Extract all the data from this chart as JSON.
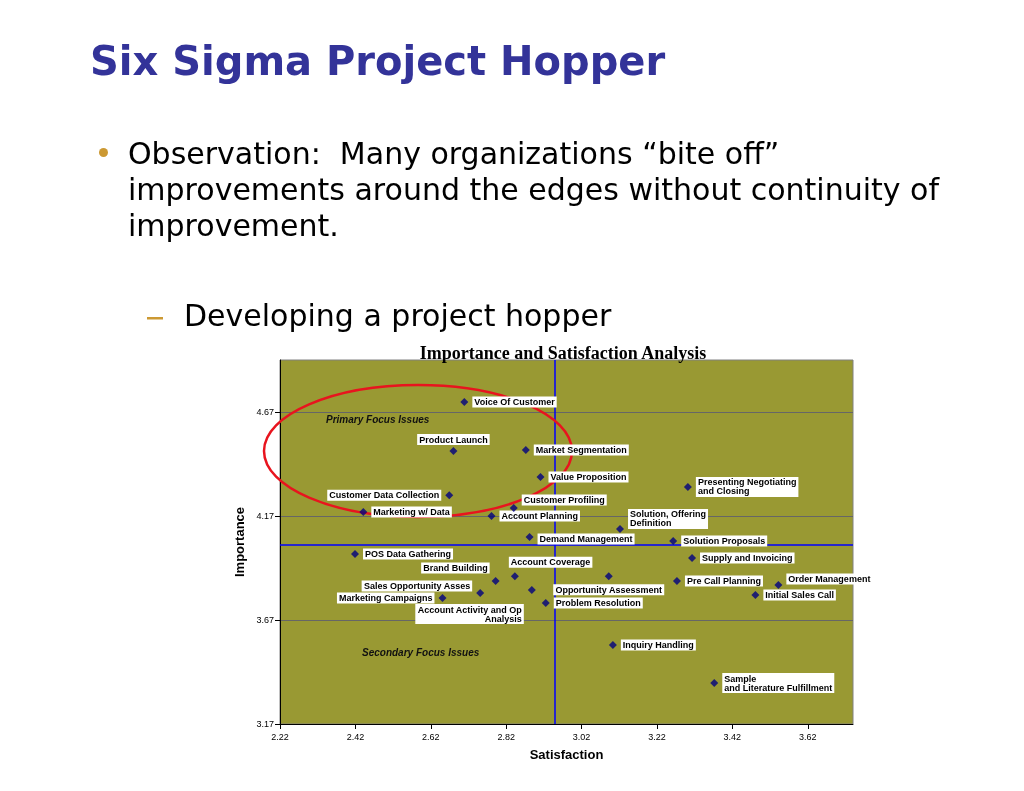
{
  "chart_data": {
    "type": "scatter",
    "title": "Six Sigma Project Hopper",
    "subtitle": "Importance and Satisfaction Analysis",
    "xlabel": "Satisfaction",
    "ylabel": "Importance",
    "x": [
      2.709,
      2.68,
      2.872,
      2.911,
      2.669,
      2.84,
      2.441,
      2.781,
      2.882,
      3.122,
      3.263,
      3.302,
      2.419,
      2.792,
      2.751,
      2.651,
      2.843,
      2.888,
      2.925,
      3.092,
      3.273,
      3.313,
      3.542,
      3.481,
      3.103,
      3.372
    ],
    "series": [
      {
        "color": "#000080",
        "values": [
          4.718,
          4.482,
          4.487,
          4.357,
          4.27,
          4.208,
          4.189,
          4.17,
          4.069,
          4.108,
          4.05,
          4.31,
          3.987,
          3.857,
          3.8,
          3.776,
          3.88,
          3.814,
          3.752,
          3.88,
          3.857,
          3.968,
          3.838,
          3.79,
          3.55,
          3.367
        ]
      }
    ],
    "marker": "diamond",
    "grid": "y",
    "xlim": [
      2.22,
      3.74
    ],
    "xticks": [
      2.22,
      2.42,
      2.62,
      2.82,
      3.02,
      3.22,
      3.42,
      3.62
    ],
    "ylim": [
      3.17,
      4.92
    ],
    "yticks": [
      3.17,
      3.67,
      4.17,
      4.67
    ],
    "ref_lines": [
      {
        "axis": "x",
        "value": 2.951,
        "color": "#0000ff"
      },
      {
        "axis": "y",
        "value": 4.026,
        "color": "#0000ff"
      }
    ],
    "annotations": [
      "Observation:  Many organizations “bite off” improvements around the edges without continuity of improvement.",
      "Developing a project hopper",
      "Primary Focus Issues",
      "Secondary Focus Issues",
      {
        "text": "Voice Of Customer",
        "x": 2.709,
        "y": 4.718
      },
      {
        "text": "Product Launch",
        "x": 2.68,
        "y": 4.482
      },
      {
        "text": "Market Segmentation",
        "x": 2.872,
        "y": 4.487
      },
      {
        "text": "Value Proposition",
        "x": 2.911,
        "y": 4.357
      },
      {
        "text": "Customer Data Collection",
        "x": 2.669,
        "y": 4.27
      },
      {
        "text": "Customer Profiling",
        "x": 2.84,
        "y": 4.208
      },
      {
        "text": "Marketing w/ Data",
        "x": 2.441,
        "y": 4.189
      },
      {
        "text": "Account Planning",
        "x": 2.781,
        "y": 4.17
      },
      {
        "text": "Demand Management",
        "x": 2.882,
        "y": 4.069
      },
      {
        "text": "Solution, Offering\nDefinition",
        "x": 3.122,
        "y": 4.108
      },
      {
        "text": "Solution Proposals",
        "x": 3.263,
        "y": 4.05
      },
      {
        "text": "Presenting Negotiating\nand Closing",
        "x": 3.302,
        "y": 4.31
      },
      {
        "text": "POS Data Gathering",
        "x": 2.419,
        "y": 3.987
      },
      {
        "text": "Brand Building",
        "x": 2.792,
        "y": 3.857
      },
      {
        "text": "Sales Opportunity Asses",
        "x": 2.751,
        "y": 3.8
      },
      {
        "text": "Marketing Campaigns",
        "x": 2.651,
        "y": 3.776
      },
      {
        "text": "Account Coverage",
        "x": 2.843,
        "y": 3.88
      },
      {
        "text": "Account Activity and Op\nAnalysis",
        "x": 2.888,
        "y": 3.814
      },
      {
        "text": "Problem Resolution",
        "x": 2.925,
        "y": 3.752
      },
      {
        "text": "Opportunity Assessment",
        "x": 3.092,
        "y": 3.88
      },
      {
        "text": "Pre Call Planning",
        "x": 3.273,
        "y": 3.857
      },
      {
        "text": "Supply and Invoicing",
        "x": 3.313,
        "y": 3.968
      },
      {
        "text": "Order Management",
        "x": 3.542,
        "y": 3.838
      },
      {
        "text": "Initial Sales Call",
        "x": 3.481,
        "y": 3.79
      },
      {
        "text": "Inquiry Handling",
        "x": 3.103,
        "y": 3.55
      },
      {
        "text": "Sample\nand Literature Fulfillment",
        "x": 3.372,
        "y": 3.367
      }
    ]
  }
}
